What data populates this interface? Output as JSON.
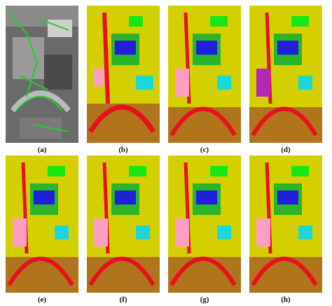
{
  "figure": {
    "panels": [
      {
        "label": "(a)",
        "kind": "grayscale"
      },
      {
        "label": "(b)",
        "kind": "classification"
      },
      {
        "label": "(c)",
        "kind": "classification"
      },
      {
        "label": "(d)",
        "kind": "classification"
      },
      {
        "label": "(e)",
        "kind": "classification"
      },
      {
        "label": "(f)",
        "kind": "classification"
      },
      {
        "label": "(g)",
        "kind": "classification"
      },
      {
        "label": "(h)",
        "kind": "classification"
      }
    ],
    "class_colors": {
      "background": "#d4d000",
      "road": "#e8101c",
      "bare_soil": "#b0741c",
      "trees": "#15e815",
      "meadow": "#2ab52a",
      "buildings": "#1f1fdc",
      "shadow": "#ff9ec0",
      "bitumen": "#b02ab0",
      "gravel": "#1ad8d8"
    }
  }
}
